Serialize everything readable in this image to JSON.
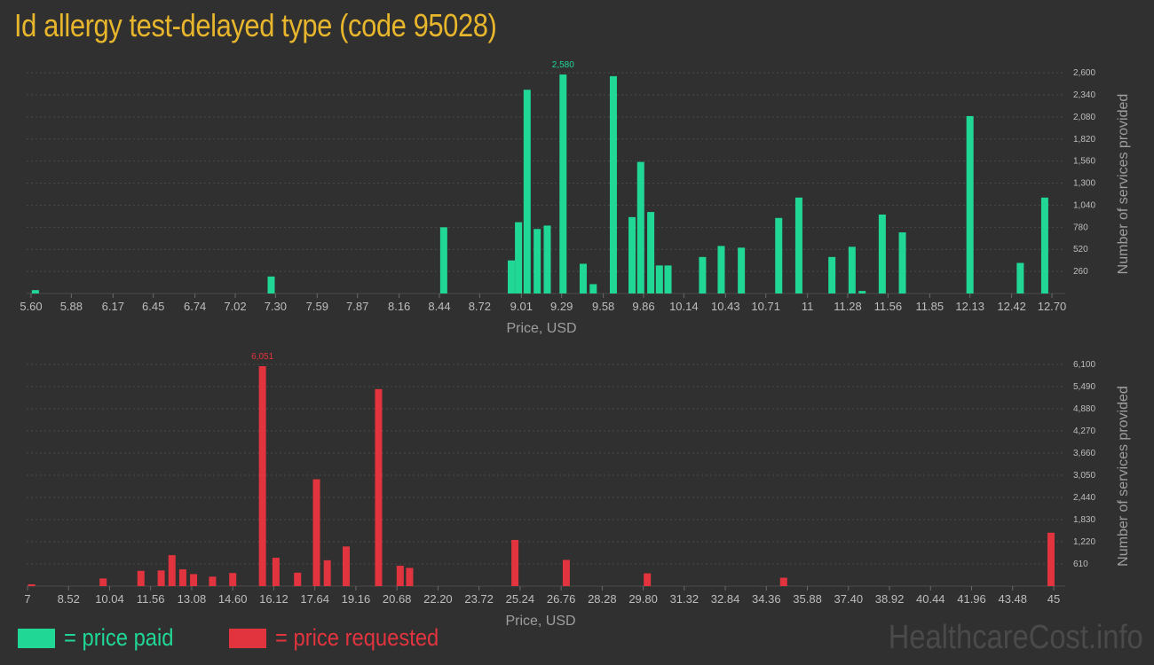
{
  "title": "Id allergy test-delayed type (code 95028)",
  "colors": {
    "paid": "#20d796",
    "requested": "#e2343e",
    "title": "#e8b62c"
  },
  "legend": {
    "paid": "= price paid",
    "requested": "= price requested"
  },
  "watermark": "HealthcareCost.info",
  "chart_data": [
    {
      "type": "bar",
      "series_name": "price paid",
      "xlabel": "Price, USD",
      "ylabel": "Number of services provided",
      "xlim": [
        5.6,
        12.7
      ],
      "ylim": [
        0,
        2580
      ],
      "x_ticks": [
        "5.60",
        "5.88",
        "6.17",
        "6.45",
        "6.74",
        "7.02",
        "7.30",
        "7.59",
        "7.87",
        "8.16",
        "8.44",
        "8.72",
        "9.01",
        "9.29",
        "9.58",
        "9.86",
        "10.14",
        "10.43",
        "10.71",
        "11",
        "11.28",
        "11.56",
        "11.85",
        "12.13",
        "12.42",
        "12.70"
      ],
      "x_tick_values": [
        5.6,
        5.88,
        6.17,
        6.45,
        6.74,
        7.02,
        7.3,
        7.59,
        7.87,
        8.16,
        8.44,
        8.72,
        9.01,
        9.29,
        9.58,
        9.86,
        10.14,
        10.43,
        10.71,
        11.0,
        11.28,
        11.56,
        11.85,
        12.13,
        12.42,
        12.7
      ],
      "y_ticks": [
        260,
        520,
        780,
        1040,
        1300,
        1560,
        1820,
        2080,
        2340,
        2600
      ],
      "y_tick_labels": [
        "260",
        "520",
        "780",
        "1,040",
        "1,300",
        "1,560",
        "1,820",
        "2,080",
        "2,340",
        "2,600"
      ],
      "peak_label": "2,580",
      "peak_x": 9.3,
      "bars": [
        {
          "x": 5.63,
          "value": 40
        },
        {
          "x": 7.27,
          "value": 200
        },
        {
          "x": 8.47,
          "value": 780
        },
        {
          "x": 8.94,
          "value": 390
        },
        {
          "x": 8.99,
          "value": 840
        },
        {
          "x": 9.05,
          "value": 2400
        },
        {
          "x": 9.12,
          "value": 760
        },
        {
          "x": 9.19,
          "value": 800
        },
        {
          "x": 9.3,
          "value": 2580
        },
        {
          "x": 9.44,
          "value": 350
        },
        {
          "x": 9.51,
          "value": 110
        },
        {
          "x": 9.65,
          "value": 2560
        },
        {
          "x": 9.78,
          "value": 900
        },
        {
          "x": 9.84,
          "value": 1550
        },
        {
          "x": 9.91,
          "value": 960
        },
        {
          "x": 9.97,
          "value": 330
        },
        {
          "x": 10.03,
          "value": 330
        },
        {
          "x": 10.27,
          "value": 430
        },
        {
          "x": 10.4,
          "value": 560
        },
        {
          "x": 10.54,
          "value": 540
        },
        {
          "x": 10.8,
          "value": 890
        },
        {
          "x": 10.94,
          "value": 1130
        },
        {
          "x": 11.17,
          "value": 430
        },
        {
          "x": 11.31,
          "value": 550
        },
        {
          "x": 11.38,
          "value": 30
        },
        {
          "x": 11.52,
          "value": 930
        },
        {
          "x": 11.66,
          "value": 720
        },
        {
          "x": 12.13,
          "value": 2090
        },
        {
          "x": 12.48,
          "value": 360
        },
        {
          "x": 12.65,
          "value": 1130
        }
      ]
    },
    {
      "type": "bar",
      "series_name": "price requested",
      "xlabel": "Price, USD",
      "ylabel": "Number of services provided",
      "xlim": [
        7,
        45
      ],
      "ylim": [
        0,
        6051
      ],
      "x_ticks": [
        "7",
        "8.52",
        "10.04",
        "11.56",
        "13.08",
        "14.60",
        "16.12",
        "17.64",
        "19.16",
        "20.68",
        "22.20",
        "23.72",
        "25.24",
        "26.76",
        "28.28",
        "29.80",
        "31.32",
        "32.84",
        "34.36",
        "35.88",
        "37.40",
        "38.92",
        "40.44",
        "41.96",
        "43.48",
        "45"
      ],
      "x_tick_values": [
        7,
        8.52,
        10.04,
        11.56,
        13.08,
        14.6,
        16.12,
        17.64,
        19.16,
        20.68,
        22.2,
        23.72,
        25.24,
        26.76,
        28.28,
        29.8,
        31.32,
        32.84,
        34.36,
        35.88,
        37.4,
        38.92,
        40.44,
        41.96,
        43.48,
        45
      ],
      "y_ticks": [
        610,
        1220,
        1830,
        2440,
        3050,
        3660,
        4270,
        4880,
        5490,
        6100
      ],
      "y_tick_labels": [
        "610",
        "1,220",
        "1,830",
        "2,440",
        "3,050",
        "3,660",
        "4,270",
        "4,880",
        "5,490",
        "6,100"
      ],
      "peak_label": "6,051",
      "peak_x": 15.7,
      "bars": [
        {
          "x": 7.15,
          "value": 50
        },
        {
          "x": 9.8,
          "value": 210
        },
        {
          "x": 11.2,
          "value": 420
        },
        {
          "x": 11.95,
          "value": 430
        },
        {
          "x": 12.35,
          "value": 850
        },
        {
          "x": 12.75,
          "value": 460
        },
        {
          "x": 13.15,
          "value": 330
        },
        {
          "x": 13.85,
          "value": 260
        },
        {
          "x": 14.6,
          "value": 360
        },
        {
          "x": 15.7,
          "value": 6051
        },
        {
          "x": 16.2,
          "value": 780
        },
        {
          "x": 17.0,
          "value": 370
        },
        {
          "x": 17.7,
          "value": 2940
        },
        {
          "x": 18.1,
          "value": 710
        },
        {
          "x": 18.8,
          "value": 1090
        },
        {
          "x": 20.0,
          "value": 5420
        },
        {
          "x": 20.8,
          "value": 560
        },
        {
          "x": 21.15,
          "value": 500
        },
        {
          "x": 25.05,
          "value": 1270
        },
        {
          "x": 26.95,
          "value": 720
        },
        {
          "x": 29.95,
          "value": 350
        },
        {
          "x": 35.0,
          "value": 230
        },
        {
          "x": 44.9,
          "value": 1470
        }
      ]
    }
  ]
}
